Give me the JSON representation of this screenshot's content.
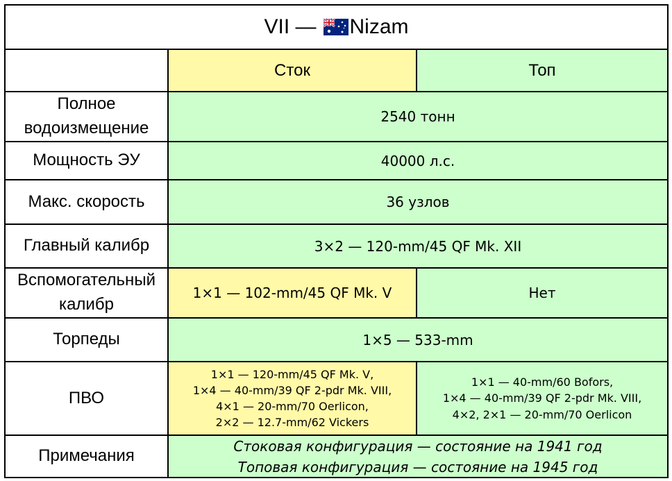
{
  "title": {
    "tier": "VII",
    "dash": "—",
    "name": "Nizam"
  },
  "columns": {
    "stock": "Сток",
    "top": "Топ"
  },
  "rows": {
    "displacement": {
      "label": "Полное водоизмещение",
      "value": "2540 тонн"
    },
    "power": {
      "label": "Мощность ЭУ",
      "value": "40000 л.с."
    },
    "speed": {
      "label": "Макс. скорость",
      "value": "36 узлов"
    },
    "main_battery": {
      "label": "Главный калибр",
      "value": "3×2 — 120-mm/45 QF Mk. XII"
    },
    "secondary": {
      "label": "Вспомогательный калибр",
      "stock": "1×1 — 102-mm/45 QF Mk. V",
      "top": "Нет"
    },
    "torpedoes": {
      "label": "Торпеды",
      "value": "1×5 — 533-mm"
    },
    "aa": {
      "label": "ПВО",
      "stock": [
        "1×1 — 120-mm/45 QF Mk. V,",
        "1×4 — 40-mm/39 QF 2-pdr Mk. VIII,",
        "4×1 — 20-mm/70 Oerlicon,",
        "2×2 — 12.7-mm/62 Vickers"
      ],
      "top": [
        "1×1 — 40-mm/60 Bofors,",
        "1×4 — 40-mm/39 QF 2-pdr Mk. VIII,",
        "4×2, 2×1 — 20-mm/70 Oerlicon"
      ]
    },
    "notes": {
      "label": "Примечания",
      "lines": [
        "Стоковая конфигурация — состояние на 1941 год",
        "Топовая конфигурация — состояние на 1945 год"
      ]
    }
  },
  "colors": {
    "stock_bg": "#fff9a8",
    "top_bg": "#ccffcc",
    "border": "#000000"
  },
  "icons": {
    "flag": "australia-flag-icon"
  }
}
